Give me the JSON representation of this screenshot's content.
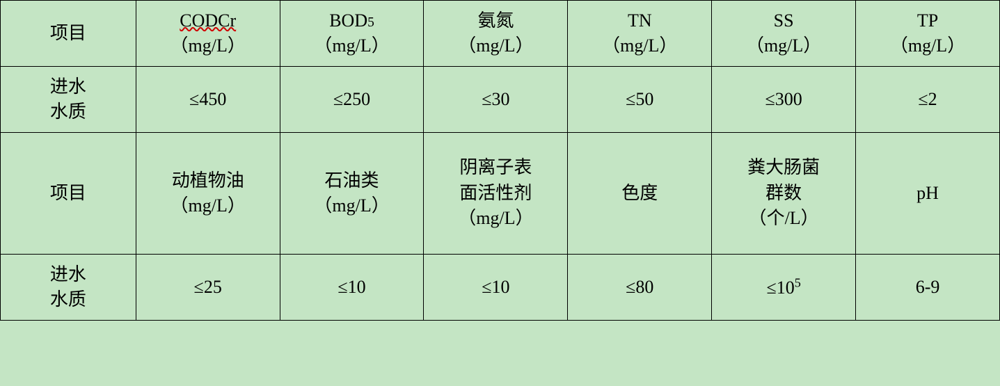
{
  "table": {
    "background_color": "#c4e5c4",
    "border_color": "#000000",
    "font_color": "#000000",
    "underline_color": "#d00000",
    "font_size": 26,
    "columns": 7,
    "rows": [
      {
        "type": "header",
        "cells": [
          {
            "text": "项目"
          },
          {
            "line1": "CODCr",
            "line2": "（mg/L）",
            "underline": true
          },
          {
            "line1": "BOD5",
            "line2": "（mg/L）",
            "sub5": true
          },
          {
            "line1": "氨氮",
            "line2": "（mg/L）"
          },
          {
            "line1": "TN",
            "line2": "（mg/L）"
          },
          {
            "line1": "SS",
            "line2": "（mg/L）"
          },
          {
            "line1": "TP",
            "line2": "（mg/L）"
          }
        ]
      },
      {
        "type": "data",
        "cells": [
          {
            "line1": "进水",
            "line2": "水质"
          },
          {
            "text": "≤450"
          },
          {
            "text": "≤250"
          },
          {
            "text": "≤30"
          },
          {
            "text": "≤50"
          },
          {
            "text": "≤300"
          },
          {
            "text": "≤2"
          }
        ]
      },
      {
        "type": "header2",
        "cells": [
          {
            "text": "项目"
          },
          {
            "line1": "动植物油",
            "line2": "（mg/L）"
          },
          {
            "line1": "石油类",
            "line2": "（mg/L）"
          },
          {
            "line1": "阴离子表",
            "line2": "面活性剂",
            "line3": "（mg/L）"
          },
          {
            "text": "色度"
          },
          {
            "line1": "粪大肠菌",
            "line2": "群数",
            "line3": "（个/L）"
          },
          {
            "text": "pH"
          }
        ]
      },
      {
        "type": "data2",
        "cells": [
          {
            "line1": "进水",
            "line2": "水质"
          },
          {
            "text": "≤25"
          },
          {
            "text": "≤10"
          },
          {
            "text": "≤10"
          },
          {
            "text": "≤80"
          },
          {
            "text_html": "≤10<sup>5</sup>"
          },
          {
            "text": "6-9"
          }
        ]
      }
    ]
  }
}
